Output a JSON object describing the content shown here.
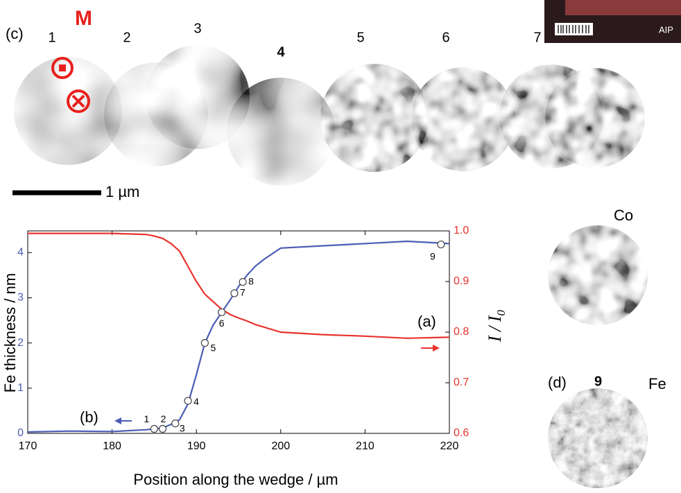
{
  "figure": {
    "panel_c": "(c)",
    "magnetization": "M",
    "images": [
      "1",
      "2",
      "3",
      "4",
      "5",
      "6",
      "7"
    ],
    "scale_bar": "1 µm",
    "co": "Co",
    "panel_d": "(d)",
    "fe_index": "9",
    "fe": "Fe",
    "publisher": "AIP"
  },
  "chart_data": {
    "type": "line",
    "xlabel": "Position along the wedge / µm",
    "ylabel": "Fe thickness / nm",
    "y2label": {
      "main": "I / I",
      "sub": "0"
    },
    "annotations": {
      "a": "(a)",
      "b": "(b)"
    },
    "x": [
      170,
      175,
      180,
      184,
      185,
      186,
      187,
      188,
      189,
      190,
      191,
      192,
      193,
      194,
      195,
      196,
      197,
      198,
      200,
      205,
      210,
      215,
      220
    ],
    "series": [
      {
        "color": "#4a5cb5",
        "values": [
          0.03,
          0.05,
          0.04,
          0.08,
          0.1,
          0.12,
          0.2,
          0.3,
          0.65,
          1.3,
          2.0,
          2.4,
          2.68,
          2.95,
          3.25,
          3.5,
          3.7,
          3.85,
          4.1,
          4.15,
          4.2,
          4.25,
          4.2
        ]
      },
      {
        "color": "#e8332e",
        "axis": "y2",
        "values": [
          0.995,
          0.995,
          0.995,
          0.993,
          0.99,
          0.985,
          0.975,
          0.96,
          0.93,
          0.9,
          0.875,
          0.86,
          0.845,
          0.835,
          0.828,
          0.822,
          0.815,
          0.81,
          0.8,
          0.795,
          0.792,
          0.788,
          0.79
        ]
      }
    ],
    "points": {
      "x": [
        185,
        186,
        187.5,
        189,
        191,
        193,
        194.5,
        195.5,
        219
      ],
      "values": [
        0.1,
        0.1,
        0.22,
        0.72,
        2.0,
        2.68,
        3.1,
        3.35,
        4.18
      ],
      "labels": [
        "1",
        "2",
        "3",
        "4",
        "5",
        "6",
        "7",
        "8",
        "9"
      ]
    },
    "xlim": [
      170,
      220
    ],
    "xticks": [
      170,
      180,
      190,
      200,
      210,
      220
    ],
    "ylim": [
      0,
      4.48
    ],
    "yticks": [
      0,
      1,
      2,
      3,
      4
    ],
    "y2lim": [
      0.6,
      1.0
    ],
    "y2ticks": [
      0.6,
      0.7,
      0.8,
      0.9,
      {
        "value": 1,
        "label": "1.0"
      }
    ]
  }
}
